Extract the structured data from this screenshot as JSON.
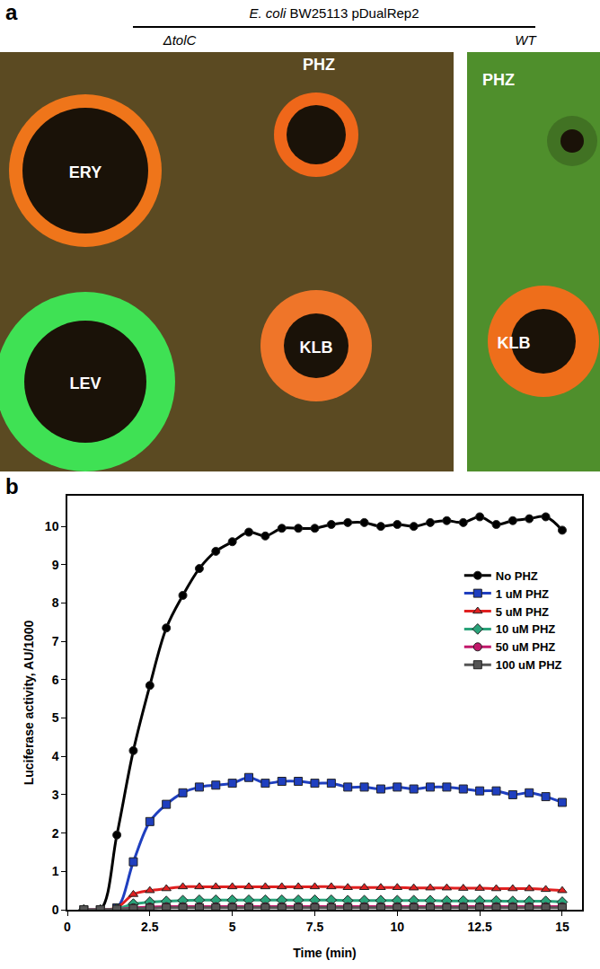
{
  "figure": {
    "panel_labels": [
      "a",
      "b"
    ],
    "plate_image": {
      "species": "E. coli",
      "strain": "BW25113 pDualRep2",
      "plates": [
        {
          "label": "ΔtolC",
          "discs": [
            "ERY",
            "PHZ",
            "LEV",
            "KLB"
          ]
        },
        {
          "label": "WT",
          "discs": [
            "PHZ",
            "KLB"
          ]
        }
      ]
    }
  },
  "chart_data": {
    "type": "line",
    "x_label": "Time (min)",
    "y_label": "Luciferase activity, AU/1000",
    "x": [
      0.5,
      1,
      1.5,
      2,
      2.5,
      3,
      3.5,
      4,
      4.5,
      5,
      5.5,
      6,
      6.5,
      7,
      7.5,
      8,
      8.5,
      9,
      9.5,
      10,
      10.5,
      11,
      11.5,
      12,
      12.5,
      13,
      13.5,
      14,
      14.5,
      15
    ],
    "series": [
      {
        "name": "No PHZ",
        "color": "#000000",
        "marker": "circle",
        "values": [
          0,
          0,
          1.95,
          4.15,
          5.85,
          7.35,
          8.2,
          8.9,
          9.35,
          9.6,
          9.85,
          9.75,
          9.95,
          9.95,
          9.95,
          10.05,
          10.1,
          10.1,
          10.0,
          10.05,
          10.0,
          10.1,
          10.15,
          10.1,
          10.25,
          10.05,
          10.15,
          10.2,
          10.25,
          9.9
        ]
      },
      {
        "name": "1 uM PHZ",
        "color": "#1f3fbf",
        "marker": "square",
        "values": [
          0,
          0,
          0.05,
          1.25,
          2.3,
          2.75,
          3.05,
          3.2,
          3.25,
          3.3,
          3.45,
          3.3,
          3.35,
          3.35,
          3.3,
          3.3,
          3.2,
          3.2,
          3.15,
          3.2,
          3.15,
          3.2,
          3.2,
          3.15,
          3.1,
          3.1,
          3.0,
          3.05,
          2.95,
          2.8
        ]
      },
      {
        "name": "5 uM PHZ",
        "color": "#e02020",
        "marker": "triangle-up",
        "values": [
          0,
          0,
          0.05,
          0.4,
          0.5,
          0.55,
          0.6,
          0.6,
          0.6,
          0.6,
          0.6,
          0.6,
          0.6,
          0.6,
          0.6,
          0.6,
          0.58,
          0.58,
          0.58,
          0.58,
          0.57,
          0.57,
          0.57,
          0.56,
          0.56,
          0.55,
          0.55,
          0.55,
          0.53,
          0.5
        ]
      },
      {
        "name": "10 uM PHZ",
        "color": "#2aa37a",
        "marker": "diamond",
        "values": [
          0,
          0,
          0.02,
          0.15,
          0.2,
          0.22,
          0.24,
          0.25,
          0.25,
          0.25,
          0.25,
          0.25,
          0.25,
          0.25,
          0.25,
          0.25,
          0.24,
          0.24,
          0.24,
          0.24,
          0.24,
          0.24,
          0.23,
          0.23,
          0.23,
          0.23,
          0.22,
          0.22,
          0.22,
          0.2
        ]
      },
      {
        "name": "50 uM PHZ",
        "color": "#c2186b",
        "marker": "circle",
        "values": [
          0,
          0,
          0.01,
          0.05,
          0.07,
          0.08,
          0.08,
          0.08,
          0.08,
          0.08,
          0.08,
          0.08,
          0.08,
          0.08,
          0.08,
          0.08,
          0.08,
          0.08,
          0.08,
          0.08,
          0.08,
          0.08,
          0.08,
          0.08,
          0.08,
          0.08,
          0.08,
          0.08,
          0.08,
          0.08
        ]
      },
      {
        "name": "100 uM PHZ",
        "color": "#555555",
        "marker": "square",
        "values": [
          0,
          0,
          0.01,
          0.03,
          0.04,
          0.05,
          0.05,
          0.05,
          0.05,
          0.05,
          0.05,
          0.05,
          0.05,
          0.05,
          0.05,
          0.05,
          0.05,
          0.05,
          0.05,
          0.05,
          0.05,
          0.05,
          0.05,
          0.05,
          0.05,
          0.05,
          0.05,
          0.05,
          0.05,
          0.05
        ]
      }
    ],
    "xlim": [
      0,
      15.6
    ],
    "ylim": [
      0,
      10.8
    ],
    "xticks": [
      0,
      2.5,
      5,
      7.5,
      10,
      12.5,
      15
    ],
    "yticks": [
      0,
      1,
      2,
      3,
      4,
      5,
      6,
      7,
      8,
      9,
      10
    ],
    "legend": "upper right",
    "grid": false,
    "line_style": "solid"
  }
}
